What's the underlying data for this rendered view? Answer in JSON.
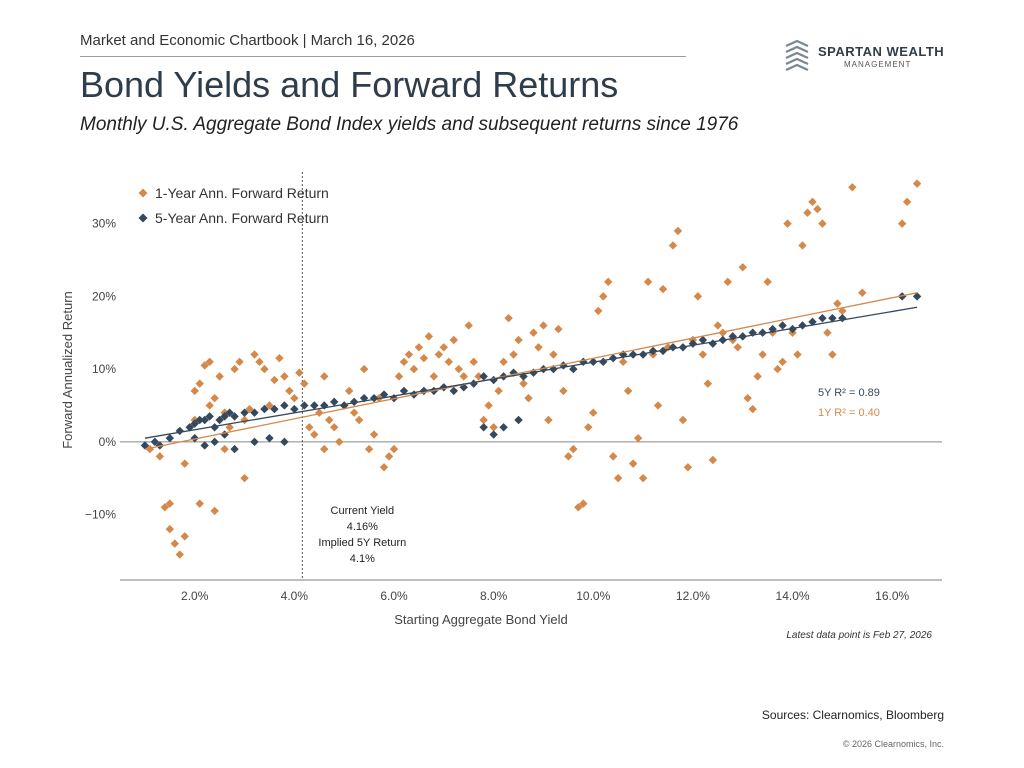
{
  "header": {
    "chartbook_line": "Market and Economic Chartbook | March 16, 2026",
    "title": "Bond Yields and Forward Returns",
    "subtitle": "Monthly U.S. Aggregate Bond Index yields and subsequent returns since 1976"
  },
  "logo": {
    "name": "SPARTAN WEALTH",
    "tagline": "MANAGEMENT",
    "icon": "stacked-chevrons-logo-icon"
  },
  "colors": {
    "one_year": "#d4894a",
    "five_year": "#34495e",
    "axis": "#7d7d7d",
    "zero_line": "#888888"
  },
  "chart_data": {
    "type": "scatter",
    "xlabel": "Starting Aggregate Bond Yield",
    "ylabel": "Forward Annualized Return",
    "xlim": [
      0.5,
      17.0
    ],
    "ylim": [
      -19,
      36
    ],
    "x_ticks": [
      2,
      4,
      6,
      8,
      10,
      12,
      14,
      16
    ],
    "x_tick_labels": [
      "2.0%",
      "4.0%",
      "6.0%",
      "8.0%",
      "10.0%",
      "12.0%",
      "14.0%",
      "16.0%"
    ],
    "y_ticks": [
      -10,
      0,
      10,
      20,
      30
    ],
    "y_tick_labels": [
      "−10%",
      "0%",
      "10%",
      "20%",
      "30%"
    ],
    "grid": false,
    "legend_placement": "top-left",
    "series": [
      {
        "name": "1-Year Ann. Forward Return",
        "color": "#d4894a",
        "points": [
          [
            1.1,
            -1
          ],
          [
            1.3,
            -2
          ],
          [
            1.4,
            -9
          ],
          [
            1.5,
            -8.5
          ],
          [
            1.5,
            -12
          ],
          [
            1.6,
            -14
          ],
          [
            1.7,
            -15.5
          ],
          [
            1.8,
            -13
          ],
          [
            1.8,
            -3
          ],
          [
            1.9,
            2
          ],
          [
            2.0,
            3
          ],
          [
            2.0,
            7
          ],
          [
            2.1,
            8
          ],
          [
            2.2,
            10.5
          ],
          [
            2.3,
            11
          ],
          [
            2.1,
            -8.5
          ],
          [
            2.4,
            -9.5
          ],
          [
            2.3,
            5
          ],
          [
            2.4,
            6
          ],
          [
            2.5,
            9
          ],
          [
            2.6,
            4
          ],
          [
            2.6,
            -1
          ],
          [
            2.7,
            2
          ],
          [
            2.8,
            10
          ],
          [
            2.9,
            11
          ],
          [
            3.0,
            -5
          ],
          [
            3.0,
            3
          ],
          [
            3.1,
            4.5
          ],
          [
            3.2,
            12
          ],
          [
            3.3,
            11
          ],
          [
            3.4,
            10
          ],
          [
            3.5,
            5
          ],
          [
            3.6,
            8.5
          ],
          [
            3.7,
            11.5
          ],
          [
            3.8,
            9
          ],
          [
            3.9,
            7
          ],
          [
            4.0,
            6
          ],
          [
            4.1,
            9.5
          ],
          [
            4.2,
            8
          ],
          [
            4.3,
            2
          ],
          [
            4.4,
            1
          ],
          [
            4.5,
            4
          ],
          [
            4.6,
            -1
          ],
          [
            4.6,
            9
          ],
          [
            4.7,
            3
          ],
          [
            4.8,
            2
          ],
          [
            4.9,
            0
          ],
          [
            5.0,
            5
          ],
          [
            5.1,
            7
          ],
          [
            5.2,
            4
          ],
          [
            5.3,
            3
          ],
          [
            5.4,
            10
          ],
          [
            5.5,
            -1
          ],
          [
            5.6,
            1
          ],
          [
            5.7,
            6
          ],
          [
            5.8,
            -3.5
          ],
          [
            5.9,
            -2
          ],
          [
            6.0,
            -1
          ],
          [
            6.1,
            9
          ],
          [
            6.2,
            11
          ],
          [
            6.3,
            12
          ],
          [
            6.4,
            10
          ],
          [
            6.5,
            13
          ],
          [
            6.6,
            11.5
          ],
          [
            6.7,
            14.5
          ],
          [
            6.8,
            9
          ],
          [
            6.9,
            12
          ],
          [
            7.0,
            13
          ],
          [
            7.1,
            11
          ],
          [
            7.2,
            14
          ],
          [
            7.3,
            10
          ],
          [
            7.4,
            9
          ],
          [
            7.5,
            16
          ],
          [
            7.6,
            11
          ],
          [
            7.7,
            9
          ],
          [
            7.8,
            3
          ],
          [
            7.9,
            5
          ],
          [
            8.0,
            2
          ],
          [
            8.1,
            7
          ],
          [
            8.2,
            11
          ],
          [
            8.3,
            17
          ],
          [
            8.4,
            12
          ],
          [
            8.5,
            14
          ],
          [
            8.6,
            8
          ],
          [
            8.7,
            6
          ],
          [
            8.8,
            15
          ],
          [
            8.9,
            13
          ],
          [
            9.0,
            16
          ],
          [
            9.1,
            3
          ],
          [
            9.2,
            12
          ],
          [
            9.3,
            15.5
          ],
          [
            9.4,
            7
          ],
          [
            9.5,
            -2
          ],
          [
            9.6,
            -1
          ],
          [
            9.7,
            -9
          ],
          [
            9.8,
            -8.5
          ],
          [
            9.9,
            2
          ],
          [
            10.0,
            4
          ],
          [
            10.1,
            18
          ],
          [
            10.2,
            20
          ],
          [
            10.3,
            22
          ],
          [
            10.4,
            -2
          ],
          [
            10.5,
            -5
          ],
          [
            10.6,
            11
          ],
          [
            10.7,
            7
          ],
          [
            10.8,
            -3
          ],
          [
            10.9,
            0.5
          ],
          [
            11.0,
            -5
          ],
          [
            11.1,
            22
          ],
          [
            11.2,
            12
          ],
          [
            11.3,
            5
          ],
          [
            11.4,
            21
          ],
          [
            11.5,
            13
          ],
          [
            11.6,
            27
          ],
          [
            11.7,
            29
          ],
          [
            11.8,
            3
          ],
          [
            11.9,
            -3.5
          ],
          [
            12.0,
            14
          ],
          [
            12.1,
            20
          ],
          [
            12.2,
            12
          ],
          [
            12.3,
            8
          ],
          [
            12.4,
            -2.5
          ],
          [
            12.5,
            16
          ],
          [
            12.6,
            15
          ],
          [
            12.7,
            22
          ],
          [
            12.8,
            14
          ],
          [
            12.9,
            13
          ],
          [
            13.0,
            24
          ],
          [
            13.1,
            6
          ],
          [
            13.2,
            4.5
          ],
          [
            13.3,
            9
          ],
          [
            13.4,
            12
          ],
          [
            13.5,
            22
          ],
          [
            13.6,
            15
          ],
          [
            13.7,
            10
          ],
          [
            13.8,
            11
          ],
          [
            13.9,
            30
          ],
          [
            14.0,
            15
          ],
          [
            14.1,
            12
          ],
          [
            14.2,
            27
          ],
          [
            14.3,
            31.5
          ],
          [
            14.4,
            33
          ],
          [
            14.5,
            32
          ],
          [
            14.6,
            30
          ],
          [
            14.7,
            15
          ],
          [
            14.8,
            12
          ],
          [
            14.9,
            19
          ],
          [
            15.0,
            18
          ],
          [
            15.2,
            35
          ],
          [
            15.4,
            20.5
          ],
          [
            16.2,
            30
          ],
          [
            16.3,
            33
          ],
          [
            16.5,
            35.5
          ]
        ]
      },
      {
        "name": "5-Year Ann. Forward Return",
        "color": "#34495e",
        "points": [
          [
            1.0,
            -0.5
          ],
          [
            1.2,
            0
          ],
          [
            1.3,
            -0.5
          ],
          [
            1.5,
            0.5
          ],
          [
            1.7,
            1.5
          ],
          [
            1.9,
            2
          ],
          [
            2.0,
            2.5
          ],
          [
            2.1,
            3
          ],
          [
            2.2,
            3
          ],
          [
            2.3,
            3.5
          ],
          [
            2.4,
            2
          ],
          [
            2.5,
            3
          ],
          [
            2.6,
            3.5
          ],
          [
            2.7,
            4
          ],
          [
            2.8,
            3.5
          ],
          [
            3.0,
            4
          ],
          [
            3.2,
            4
          ],
          [
            3.4,
            4.5
          ],
          [
            3.6,
            4.5
          ],
          [
            3.8,
            5
          ],
          [
            4.0,
            4.5
          ],
          [
            4.2,
            5
          ],
          [
            4.4,
            5
          ],
          [
            4.6,
            5
          ],
          [
            4.8,
            5.5
          ],
          [
            5.0,
            5
          ],
          [
            5.2,
            5.5
          ],
          [
            5.4,
            6
          ],
          [
            5.6,
            6
          ],
          [
            5.8,
            6.5
          ],
          [
            6.0,
            6
          ],
          [
            6.2,
            7
          ],
          [
            6.4,
            6.5
          ],
          [
            6.6,
            7
          ],
          [
            6.8,
            7
          ],
          [
            7.0,
            7.5
          ],
          [
            7.2,
            7
          ],
          [
            7.4,
            7.5
          ],
          [
            7.6,
            8
          ],
          [
            7.8,
            9
          ],
          [
            8.0,
            8.5
          ],
          [
            8.2,
            9
          ],
          [
            8.4,
            9.5
          ],
          [
            8.6,
            9
          ],
          [
            8.8,
            9.5
          ],
          [
            9.0,
            10
          ],
          [
            9.2,
            10
          ],
          [
            9.4,
            10.5
          ],
          [
            9.6,
            10
          ],
          [
            9.8,
            11
          ],
          [
            10.0,
            11
          ],
          [
            10.2,
            11
          ],
          [
            10.4,
            11.5
          ],
          [
            10.6,
            12
          ],
          [
            10.8,
            12
          ],
          [
            11.0,
            12
          ],
          [
            11.2,
            12.5
          ],
          [
            11.4,
            12.5
          ],
          [
            11.6,
            13
          ],
          [
            11.8,
            13
          ],
          [
            12.0,
            13.5
          ],
          [
            12.2,
            14
          ],
          [
            12.4,
            13.5
          ],
          [
            12.6,
            14
          ],
          [
            12.8,
            14.5
          ],
          [
            13.0,
            14.5
          ],
          [
            13.2,
            15
          ],
          [
            13.4,
            15
          ],
          [
            13.6,
            15.5
          ],
          [
            13.8,
            16
          ],
          [
            14.0,
            15.5
          ],
          [
            14.2,
            16
          ],
          [
            14.4,
            16.5
          ],
          [
            14.6,
            17
          ],
          [
            14.8,
            17
          ],
          [
            15.0,
            17
          ],
          [
            16.2,
            20
          ],
          [
            16.5,
            20
          ],
          [
            2.0,
            0.5
          ],
          [
            2.2,
            -0.5
          ],
          [
            2.4,
            0
          ],
          [
            2.6,
            1
          ],
          [
            2.8,
            -1
          ],
          [
            3.2,
            0
          ],
          [
            3.5,
            0.5
          ],
          [
            3.8,
            0
          ],
          [
            7.8,
            2
          ],
          [
            8.0,
            1
          ],
          [
            8.2,
            2
          ],
          [
            8.5,
            3
          ]
        ]
      }
    ],
    "trendlines": [
      {
        "series": "1-Year",
        "x": [
          1.0,
          16.5
        ],
        "y": [
          -1.0,
          20.5
        ],
        "color": "#d4894a"
      },
      {
        "series": "5-Year",
        "x": [
          1.0,
          16.5
        ],
        "y": [
          0.5,
          18.5
        ],
        "color": "#34495e"
      }
    ],
    "r_squared": [
      {
        "text": "5Y R² = 0.89",
        "color": "#34495e"
      },
      {
        "text": "1Y R² = 0.40",
        "color": "#d4894a"
      }
    ],
    "current_yield_line_x": 4.16,
    "annotation": {
      "line1": "Current Yield",
      "line2": "4.16%",
      "line3": "Implied 5Y Return",
      "line4": "4.1%"
    }
  },
  "footer": {
    "latest": "Latest data point is Feb 27, 2026",
    "sources": "Sources: Clearnomics, Bloomberg",
    "copyright": "© 2026 Clearnomics, Inc."
  }
}
